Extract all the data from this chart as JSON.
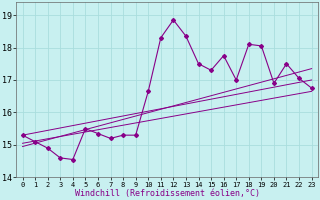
{
  "xlabel": "Windchill (Refroidissement éolien,°C)",
  "bg_color": "#c8f0f0",
  "grid_color": "#aadddd",
  "line_color": "#880088",
  "x_data": [
    0,
    1,
    2,
    3,
    4,
    5,
    6,
    7,
    8,
    9,
    10,
    11,
    12,
    13,
    14,
    15,
    16,
    17,
    18,
    19,
    20,
    21,
    22,
    23
  ],
  "y_main": [
    15.3,
    15.1,
    14.9,
    14.6,
    14.55,
    15.5,
    15.35,
    15.2,
    15.3,
    15.3,
    16.65,
    18.3,
    18.85,
    18.35,
    17.5,
    17.3,
    17.75,
    17.0,
    18.1,
    18.05,
    16.9,
    17.5,
    17.05,
    16.75
  ],
  "ylim": [
    14.0,
    19.4
  ],
  "xlim": [
    -0.5,
    23.5
  ],
  "yticks": [
    14,
    15,
    16,
    17,
    18,
    19
  ],
  "xticks": [
    0,
    1,
    2,
    3,
    4,
    5,
    6,
    7,
    8,
    9,
    10,
    11,
    12,
    13,
    14,
    15,
    16,
    17,
    18,
    19,
    20,
    21,
    22,
    23
  ],
  "reg_lines": [
    {
      "x": [
        0,
        23
      ],
      "y": [
        15.3,
        17.0
      ]
    },
    {
      "x": [
        0,
        23
      ],
      "y": [
        15.05,
        16.65
      ]
    },
    {
      "x": [
        0,
        23
      ],
      "y": [
        14.95,
        17.35
      ]
    }
  ],
  "xlabel_fontsize": 6.0,
  "xtick_fontsize": 5.0,
  "ytick_fontsize": 6.0,
  "lw_main": 0.8,
  "lw_reg": 0.7,
  "marker_size": 2.0
}
